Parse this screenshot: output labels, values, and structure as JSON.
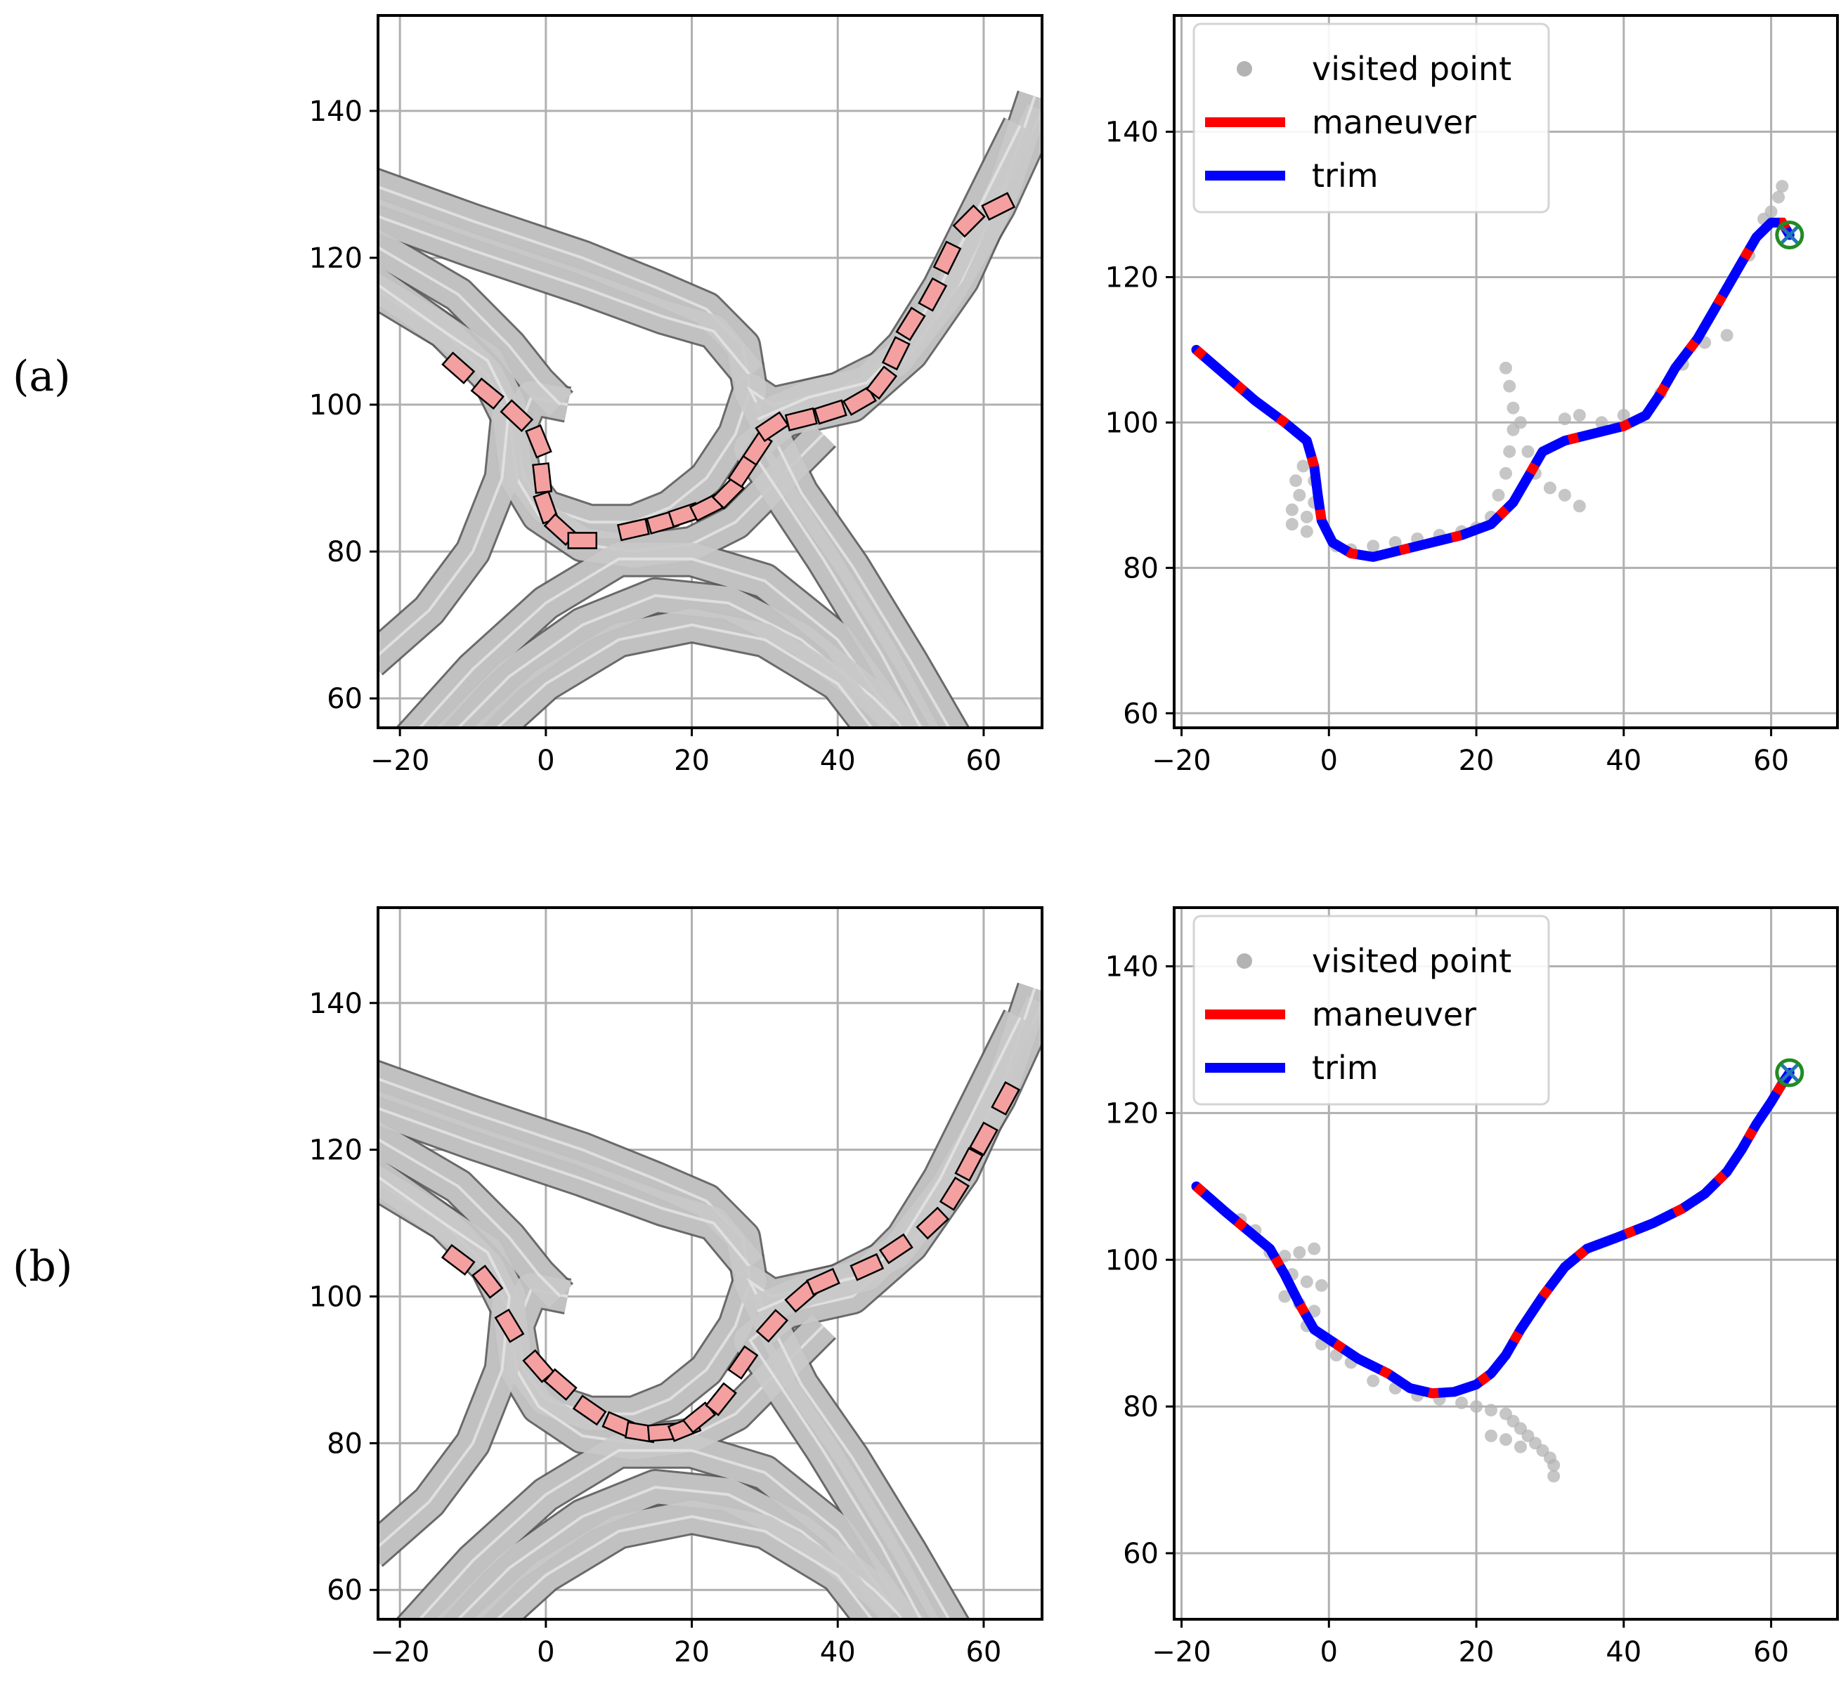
{
  "panels": [
    {
      "label": "(a)",
      "map_axes": {
        "xticks": [
          -20,
          0,
          20,
          40,
          60
        ],
        "yticks": [
          60,
          80,
          100,
          120,
          140
        ],
        "xlim": [
          -23,
          68
        ],
        "ylim": [
          56,
          153
        ]
      },
      "search_axes": {
        "xticks": [
          -20,
          0,
          20,
          40,
          60
        ],
        "yticks": [
          60,
          80,
          100,
          120,
          140
        ],
        "xlim": [
          -21,
          69
        ],
        "ylim": [
          58,
          156
        ]
      }
    },
    {
      "label": "(b)",
      "map_axes": {
        "xticks": [
          -20,
          0,
          20,
          40,
          60
        ],
        "yticks": [
          60,
          80,
          100,
          120,
          140
        ],
        "xlim": [
          -23,
          68
        ],
        "ylim": [
          56,
          153
        ]
      },
      "search_axes": {
        "xticks": [
          -20,
          0,
          20,
          40,
          60
        ],
        "yticks": [
          60,
          80,
          100,
          120,
          140
        ],
        "xlim": [
          -21,
          69
        ],
        "ylim": [
          51,
          148
        ]
      }
    }
  ],
  "legend": {
    "visited": "visited point",
    "maneuver": "maneuver",
    "trim": "trim"
  },
  "colors": {
    "maneuver": "#ff0000",
    "trim": "#0000ff",
    "visited": "#b3b3b3",
    "vehicle_fill": "#f4a0a0",
    "goal": "#228b22",
    "road": "#c9c9c9"
  },
  "chart_data": [
    {
      "type": "scatter",
      "panel": "(a)",
      "subplot": "road map with vehicle footprints",
      "xlim": [
        -23,
        68
      ],
      "ylim": [
        56,
        153
      ],
      "grid": true,
      "vehicle_poses": [
        [
          -12,
          105
        ],
        [
          -8,
          101.5
        ],
        [
          -4,
          98.5
        ],
        [
          -1,
          95
        ],
        [
          -0.5,
          90
        ],
        [
          0,
          86
        ],
        [
          2,
          83
        ],
        [
          5,
          81.5
        ],
        [
          12,
          83
        ],
        [
          16,
          84
        ],
        [
          19,
          85
        ],
        [
          22,
          86
        ],
        [
          25,
          88
        ],
        [
          27,
          91
        ],
        [
          29,
          94
        ],
        [
          31,
          97
        ],
        [
          35,
          98
        ],
        [
          39,
          99
        ],
        [
          43,
          100.5
        ],
        [
          46,
          103
        ],
        [
          48,
          107
        ],
        [
          50,
          111
        ],
        [
          53,
          115
        ],
        [
          55,
          120
        ],
        [
          58,
          125
        ],
        [
          62,
          127
        ]
      ]
    },
    {
      "type": "line",
      "panel": "(a)",
      "subplot": "search tree and path",
      "xlim": [
        -21,
        69
      ],
      "ylim": [
        58,
        156
      ],
      "grid": true,
      "legend_position": "upper-left",
      "path": [
        [
          -18,
          110
        ],
        [
          -14,
          106.5
        ],
        [
          -10,
          103
        ],
        [
          -6,
          100
        ],
        [
          -3,
          97.5
        ],
        [
          -2,
          94
        ],
        [
          -1.5,
          90
        ],
        [
          -1,
          86.5
        ],
        [
          0.5,
          83.5
        ],
        [
          3,
          82
        ],
        [
          6,
          81.5
        ],
        [
          10,
          82.5
        ],
        [
          14,
          83.5
        ],
        [
          18,
          84.5
        ],
        [
          22,
          86
        ],
        [
          25,
          89
        ],
        [
          27,
          92.5
        ],
        [
          29,
          96
        ],
        [
          32,
          97.5
        ],
        [
          36,
          98.5
        ],
        [
          40,
          99.5
        ],
        [
          43,
          101
        ],
        [
          45,
          104
        ],
        [
          47,
          107.5
        ],
        [
          50,
          111.5
        ],
        [
          52,
          115
        ],
        [
          54,
          118.5
        ],
        [
          56,
          122
        ],
        [
          58,
          125.5
        ],
        [
          60,
          127.5
        ],
        [
          61.5,
          127.5
        ],
        [
          62.5,
          125.8
        ]
      ],
      "visited": [
        [
          -5,
          88
        ],
        [
          -4,
          90
        ],
        [
          -3,
          87
        ],
        [
          -2,
          89
        ],
        [
          -4.5,
          92
        ],
        [
          -3.5,
          94
        ],
        [
          -2,
          92
        ],
        [
          -5,
          86
        ],
        [
          -3,
          85
        ],
        [
          1,
          83
        ],
        [
          3,
          82.5
        ],
        [
          6,
          83
        ],
        [
          9,
          83.5
        ],
        [
          12,
          84
        ],
        [
          15,
          84.5
        ],
        [
          18,
          85
        ],
        [
          20,
          85.5
        ],
        [
          22,
          87
        ],
        [
          23,
          90
        ],
        [
          24,
          93
        ],
        [
          24.5,
          96
        ],
        [
          25,
          99
        ],
        [
          25,
          102
        ],
        [
          24.5,
          105
        ],
        [
          24,
          107.5
        ],
        [
          26,
          100
        ],
        [
          27,
          96
        ],
        [
          28,
          93
        ],
        [
          30,
          91
        ],
        [
          32,
          90
        ],
        [
          34,
          88.5
        ],
        [
          32,
          100.5
        ],
        [
          34,
          101
        ],
        [
          37,
          100
        ],
        [
          40,
          101
        ],
        [
          45,
          104
        ],
        [
          48,
          108
        ],
        [
          51,
          111
        ],
        [
          54,
          112
        ],
        [
          57,
          123
        ],
        [
          59,
          128
        ],
        [
          60,
          129
        ],
        [
          61,
          131
        ],
        [
          61.5,
          132.5
        ]
      ],
      "start": [
        -18,
        110
      ],
      "goal": [
        62.5,
        125.8
      ]
    },
    {
      "type": "scatter",
      "panel": "(b)",
      "subplot": "road map with vehicle footprints",
      "xlim": [
        -23,
        68
      ],
      "ylim": [
        56,
        153
      ],
      "grid": true,
      "vehicle_poses": [
        [
          -12,
          105
        ],
        [
          -8,
          102
        ],
        [
          -5,
          96
        ],
        [
          -1,
          90.5
        ],
        [
          2,
          88
        ],
        [
          6,
          84.5
        ],
        [
          10,
          82.5
        ],
        [
          13,
          81.5
        ],
        [
          16,
          81.5
        ],
        [
          19,
          82
        ],
        [
          21,
          83.5
        ],
        [
          24,
          86
        ],
        [
          27,
          91
        ],
        [
          31,
          96
        ],
        [
          35,
          100
        ],
        [
          38,
          102
        ],
        [
          44,
          104
        ],
        [
          48,
          106.5
        ],
        [
          53,
          110
        ],
        [
          56,
          114
        ],
        [
          58,
          118
        ],
        [
          60,
          121.5
        ],
        [
          63,
          127
        ]
      ]
    },
    {
      "type": "line",
      "panel": "(b)",
      "subplot": "search tree and path",
      "xlim": [
        -21,
        69
      ],
      "ylim": [
        51,
        148
      ],
      "grid": true,
      "legend_position": "upper-left",
      "path": [
        [
          -18,
          110
        ],
        [
          -14,
          106.5
        ],
        [
          -11,
          104
        ],
        [
          -8,
          101.5
        ],
        [
          -6,
          98
        ],
        [
          -4,
          94
        ],
        [
          -2,
          90.5
        ],
        [
          1,
          88.5
        ],
        [
          4,
          86.5
        ],
        [
          8,
          84.5
        ],
        [
          11,
          82.5
        ],
        [
          14,
          81.8
        ],
        [
          17,
          82
        ],
        [
          20,
          83
        ],
        [
          22,
          84.5
        ],
        [
          24,
          87
        ],
        [
          26,
          90.5
        ],
        [
          29,
          95
        ],
        [
          32,
          99
        ],
        [
          35,
          101.5
        ],
        [
          39,
          103
        ],
        [
          44,
          105
        ],
        [
          48,
          107
        ],
        [
          51,
          109
        ],
        [
          54,
          112
        ],
        [
          56,
          115
        ],
        [
          58,
          118.5
        ],
        [
          60,
          121.5
        ],
        [
          61.5,
          124
        ],
        [
          62.5,
          125.5
        ]
      ],
      "visited": [
        [
          -12,
          105.5
        ],
        [
          -10,
          104
        ],
        [
          -8,
          101
        ],
        [
          -6,
          100.5
        ],
        [
          -4,
          101
        ],
        [
          -2,
          101.5
        ],
        [
          -5,
          98
        ],
        [
          -3,
          97
        ],
        [
          -1,
          96.5
        ],
        [
          -6,
          95
        ],
        [
          -4,
          94
        ],
        [
          -2,
          93
        ],
        [
          -3,
          91
        ],
        [
          -1,
          88.5
        ],
        [
          1,
          87
        ],
        [
          3,
          86
        ],
        [
          6,
          83.5
        ],
        [
          9,
          82.5
        ],
        [
          12,
          81.5
        ],
        [
          15,
          81
        ],
        [
          18,
          80.5
        ],
        [
          20,
          80
        ],
        [
          22,
          79.5
        ],
        [
          24,
          79
        ],
        [
          25,
          78
        ],
        [
          26,
          77
        ],
        [
          27,
          76
        ],
        [
          28,
          75
        ],
        [
          29,
          74
        ],
        [
          30,
          73
        ],
        [
          30.5,
          72
        ],
        [
          30.5,
          70.5
        ],
        [
          22,
          76
        ],
        [
          24,
          75.5
        ],
        [
          26,
          74.5
        ]
      ],
      "start": [
        -18,
        110
      ],
      "goal": [
        62.5,
        125.5
      ]
    }
  ]
}
